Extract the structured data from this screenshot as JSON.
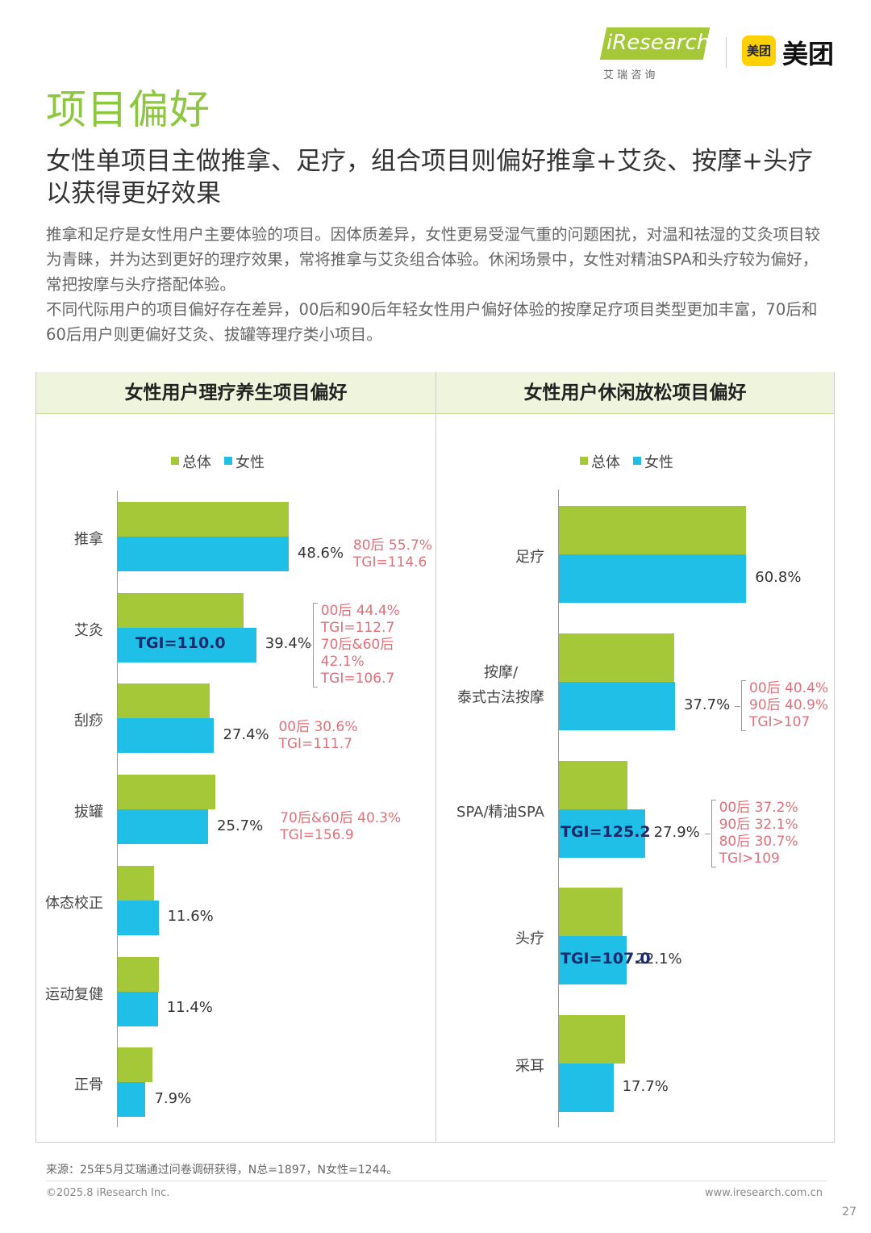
{
  "header": {
    "logo_text": "iResearch",
    "logo_subtitle": "艾 瑞 咨 询",
    "partner_badge": "美团",
    "partner_name": "美团"
  },
  "title": "项目偏好",
  "subtitle": "女性单项目主做推拿、足疗，组合项目则偏好推拿+艾灸、按摩+头疗以获得更好效果",
  "paragraphs": [
    "推拿和足疗是女性用户主要体验的项目。因体质差异，女性更易受湿气重的问题困扰，对温和祛湿的艾灸项目较为青睐，并为达到更好的理疗效果，常将推拿与艾灸组合体验。休闲场景中，女性对精油SPA和头疗较为偏好，常把按摩与头疗搭配体验。",
    "不同代际用户的项目偏好存在差异，00后和90后年轻女性用户偏好体验的按摩足疗项目类型更加丰富，70后和60后用户则更偏好艾灸、拔罐等理疗类小项目。"
  ],
  "chart_data": [
    {
      "type": "bar",
      "orientation": "horizontal",
      "title": "女性用户理疗养生项目偏好",
      "categories": [
        "推拿",
        "艾灸",
        "刮痧",
        "拔罐",
        "体态校正",
        "运动复健",
        "正骨"
      ],
      "series": [
        {
          "name": "总体",
          "color": "#a5c838",
          "values": [
            48.6,
            35.8,
            26.1,
            27.8,
            10.3,
            11.7,
            9.9
          ]
        },
        {
          "name": "女性",
          "color": "#1fbfe8",
          "values": [
            48.6,
            39.4,
            27.4,
            25.7,
            11.6,
            11.4,
            7.9
          ],
          "value_labels": [
            "48.6%",
            "39.4%",
            "27.4%",
            "25.7%",
            "11.6%",
            "11.4%",
            "7.9%"
          ]
        }
      ],
      "bar_labels": [
        null,
        "TGI=110.0",
        null,
        null,
        null,
        null,
        null
      ],
      "notes": [
        [
          "80后 55.7%",
          "TGI=114.6"
        ],
        [
          "00后 44.4%",
          "TGI=112.7",
          "70后&60后",
          "42.1%",
          "TGI=106.7"
        ],
        [
          "00后 30.6%",
          "TGI=111.7"
        ],
        [
          "70后&60后 40.3%",
          "TGI=156.9"
        ],
        null,
        null,
        null
      ]
    },
    {
      "type": "bar",
      "orientation": "horizontal",
      "title": "女性用户休闲放松项目偏好",
      "categories": [
        "足疗",
        "按摩/\n泰式古法按摩",
        "SPA/精油SPA",
        "头疗",
        "采耳"
      ],
      "series": [
        {
          "name": "总体",
          "color": "#a5c838",
          "values": [
            60.8,
            37.4,
            22.3,
            20.7,
            21.5
          ]
        },
        {
          "name": "女性",
          "color": "#1fbfe8",
          "values": [
            60.8,
            37.7,
            27.9,
            22.1,
            17.7
          ],
          "value_labels": [
            "60.8%",
            "37.7%",
            "27.9%",
            "22.1%",
            "17.7%"
          ]
        }
      ],
      "bar_labels": [
        null,
        null,
        "TGI=125.2",
        "TGI=107.0",
        null
      ],
      "notes": [
        null,
        [
          "00后 40.4%",
          "90后 40.9%",
          "TGI>107"
        ],
        [
          "00后 37.2%",
          "90后 32.1%",
          "80后 30.7%",
          "TGI>109"
        ],
        null,
        null
      ]
    }
  ],
  "footer": {
    "source": "来源：25年5月艾瑞通过问卷调研获得，N总=1897，N女性=1244。",
    "copyright": "©2025.8 iResearch Inc.",
    "website": "www.iresearch.com.cn",
    "page": "27"
  }
}
